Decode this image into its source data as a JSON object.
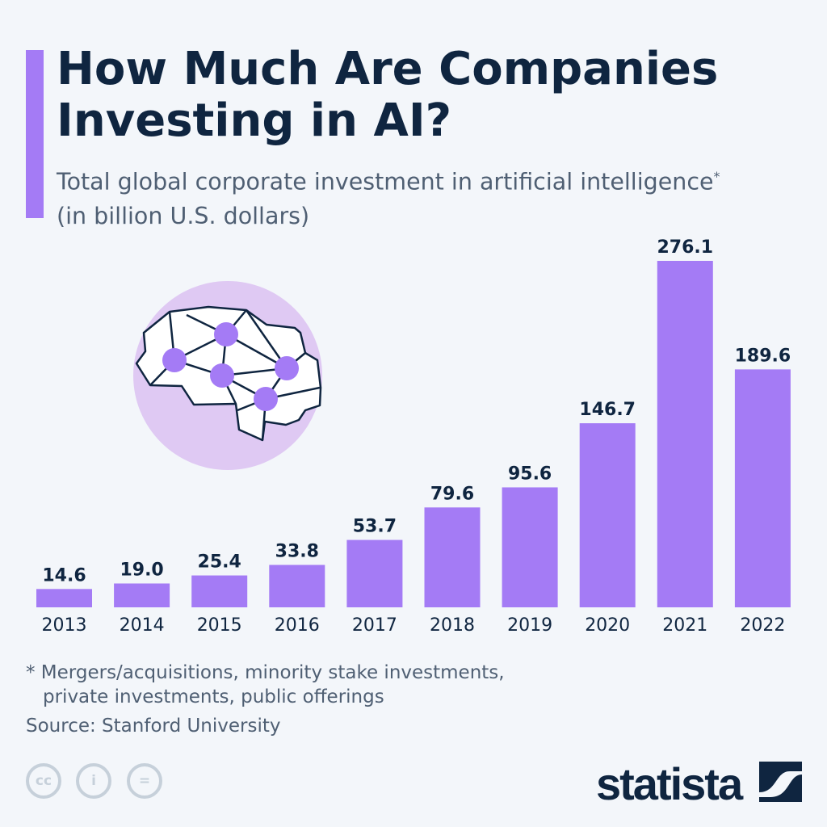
{
  "header": {
    "title": "How Much Are Companies Investing in AI?",
    "subtitle": "Total global corporate investment in artificial intelligence",
    "subtitle_mark": "*",
    "subtitle_units": "(in billion U.S. dollars)"
  },
  "chart_data": {
    "type": "bar",
    "title": "How Much Are Companies Investing in AI?",
    "ylabel": "billion U.S. dollars",
    "categories": [
      "2013",
      "2014",
      "2015",
      "2016",
      "2017",
      "2018",
      "2019",
      "2020",
      "2021",
      "2022"
    ],
    "values": [
      14.6,
      19.0,
      25.4,
      33.8,
      53.7,
      79.6,
      95.6,
      146.7,
      276.1,
      189.6
    ],
    "value_labels": [
      "14.6",
      "19.0",
      "25.4",
      "33.8",
      "53.7",
      "79.6",
      "95.6",
      "146.7",
      "276.1",
      "189.6"
    ],
    "ylim": [
      0,
      276.1
    ],
    "grid": false,
    "bar_color": "#a47bf5"
  },
  "footer": {
    "note_line1": "* Mergers/acquisitions, minority stake investments,",
    "note_line2": "private investments, public offerings",
    "source": "Source: Stanford University",
    "license_icons": [
      "cc",
      "i",
      "="
    ],
    "brand": "statista"
  },
  "colors": {
    "accent": "#a47bf5",
    "navy": "#0f2540",
    "background": "#f3f6fa"
  }
}
